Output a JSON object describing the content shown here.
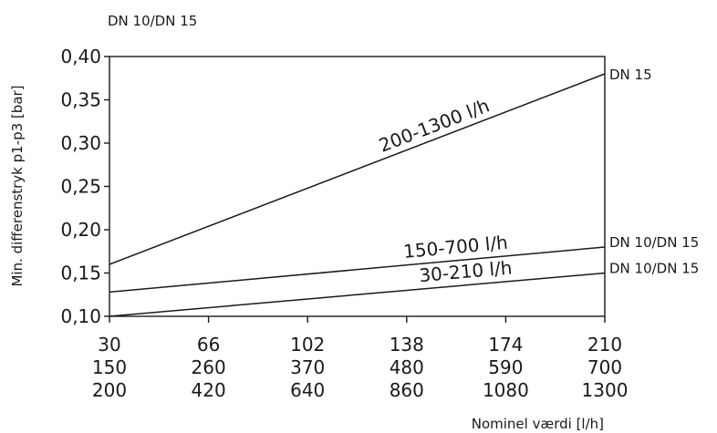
{
  "chart_data": {
    "type": "line",
    "title": "DN 10/DN 15",
    "xlabel": "Nominel værdi [l/h]",
    "ylabel": "Min. differenstryk p1-p3 [bar]",
    "ylim": [
      0.1,
      0.4
    ],
    "y_ticks": [
      "0,10",
      "0,15",
      "0,20",
      "0,25",
      "0,30",
      "0,35",
      "0,40"
    ],
    "x_tick_rows": [
      [
        "30",
        "66",
        "102",
        "138",
        "174",
        "210"
      ],
      [
        "150",
        "260",
        "370",
        "480",
        "590",
        "700"
      ],
      [
        "200",
        "420",
        "640",
        "860",
        "1080",
        "1300"
      ]
    ],
    "grid": false,
    "series": [
      {
        "name": "200-1300 l/h",
        "end_label": "DN 15",
        "x": [
          0,
          1
        ],
        "y": [
          0.16,
          0.38
        ]
      },
      {
        "name": "150-700 l/h",
        "end_label": "DN 10/DN 15",
        "x": [
          0,
          1
        ],
        "y": [
          0.128,
          0.18
        ]
      },
      {
        "name": "30-210 l/h",
        "end_label": "DN 10/DN 15",
        "x": [
          0,
          1
        ],
        "y": [
          0.1,
          0.15
        ]
      }
    ]
  }
}
